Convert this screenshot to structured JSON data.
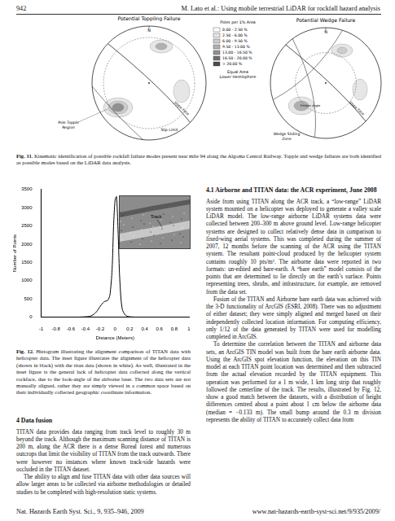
{
  "header": {
    "page": "942",
    "running_title": "M. Lato et al.: Using mobile terrestrial LiDAR for rockfall hazard analysis"
  },
  "figure11": {
    "north": "N",
    "panels": [
      {
        "title": "Potential Toppling Failure",
        "labels": [
          "Pole Topple Region",
          "Slip Limit",
          "Slope Face"
        ]
      },
      {
        "title": "Potential Wedge Failure",
        "labels": [
          "Wedge Sliding Zone",
          "Slope Face",
          "Friction Angle"
        ]
      }
    ],
    "legend": {
      "title": "Poles per 1% Area",
      "items": [
        "0.00 - 2.50 %",
        "2.50 - 6.00 %",
        "6.00 - 9.50 %",
        "9.50 - 13.00 %",
        "13.00 - 16.50 %",
        "16.50 - 20.00 %",
        "> 20.00 %"
      ],
      "footer": [
        "Equal Area",
        "Lower Hemisphere"
      ]
    },
    "caption": {
      "label": "Fig. 11.",
      "text": "Kinematic identification of possible rockfall failure modes present near mile 94 along the Algoma Central Railway. Topple and wedge failures are both identified as possible modes based on the LiDAR data analysis."
    }
  },
  "chart_data": {
    "type": "line",
    "x_label": "Distance (Meters)",
    "y_label": "Number of Points",
    "x": [
      -1,
      -0.8,
      -0.6,
      -0.45,
      -0.35,
      -0.3,
      -0.25,
      -0.2,
      -0.15,
      -0.1,
      -0.07,
      -0.04,
      -0.02,
      0,
      0.02,
      0.04,
      0.06,
      0.08,
      0.1,
      0.13,
      0.16,
      0.2,
      0.3,
      0.5,
      0.8,
      1
    ],
    "values": [
      0,
      0,
      0,
      5,
      20,
      60,
      150,
      300,
      420,
      460,
      600,
      1300,
      2500,
      3200,
      3300,
      2400,
      1200,
      500,
      200,
      80,
      30,
      10,
      0,
      0,
      0,
      0
    ],
    "color": "#000000",
    "xlim": [
      -1,
      1
    ],
    "xticks": [
      -1,
      -0.8,
      -0.6,
      -0.4,
      -0.2,
      0,
      0.2,
      0.4,
      0.6,
      0.8,
      1
    ],
    "ylim": [
      0,
      3500
    ],
    "yticks": [
      0,
      500,
      1000,
      1500,
      2000,
      2500,
      3000,
      3500
    ],
    "grid": false,
    "inset_label": "Track"
  },
  "figure12_caption": {
    "label": "Fig. 12.",
    "text": "Histogram illustrating the alignment comparison of TITAN data with helicopter data. The inset figure illustrates the alignment of the helicopter data (shown in black) with the titan data (shown in white). As well, illustrated in the inset figure is the general lack of helicopter data collected along the vertical rockface, due to the look-angle of the airborne laser. The two data sets are not manually aligned, rather they are simply viewed in a common space based on their individually collected geographic coordinate information."
  },
  "sections": [
    {
      "heading": "4 Data fusion",
      "paragraphs": [
        "TITAN data provides data ranging from track level to roughly 30 m beyond the track. Although the maximum scanning distance of TITAN is 200 m, along the ACR there is a dense Boreal forest and numerous outcrops that limit the visibility of TITAN from the track outwards. There were however no instances where known track-side hazards were occluded in the TITAN dataset.",
        "The ability to align and fuse TITAN data with other data sources will allow larger areas to be collected via airborne methodologies or detailed studies to be completed with high-resolution static systems."
      ]
    },
    {
      "heading": "4.1 Airborne and TITAN data: the ACR experiment, June 2008",
      "paragraphs": [
        "Aside from using TITAN along the ACR track, a “low-range” LiDAR system mounted on a helicopter was deployed to generate a valley scale LiDAR model. The low-range airborne LiDAR systems data were collected between 200–300 m above ground level. Low-range helicopter systems are designed to collect relatively dense data in comparison to fixed-wing aerial systems. This was completed during the summer of 2007, 12 months before the scanning of the ACR using the TITAN system. The resultant point-cloud produced by the helicopter system contains roughly 10 pts/m². The airborne data were reported in two formats: un-edited and bare-earth. A “bare earth” model consists of the points that are determined to lie directly on the earth’s surface. Points representing trees, shrubs, and infrastructure, for example, are removed from the data set.",
        "Fusion of the TITAN and Airborne bare earth data was achieved with the 3-D functionality of ArcGIS (ESRI, 2008). There was no adjustment of either dataset; they were simply aligned and merged based on their independently collected location information. For computing efficiency, only 1/12 of the data generated by TITAN were used for modelling completed in ArcGIS.",
        "To determine the correlation between the TITAN and airborne data sets, an ArcGIS TIN model was built from the bare earth airborne data. Using the ArcGIS spot elevation function, the elevation on this TIN model at each TITAN point location was determined and then subtracted from the actual elevation recorded by the TITAN equipment. This operation was performed for a 1 m wide, 1 km long strip that roughly followed the centerline of the track. The results, illustrated by Fig. 12, show a good match between the datasets, with a distribution of height differences centred about a point about 1 cm below the airborne data (median = −0.133 m). The small bump around the 0.3 m division represents the ability of TITAN to accurately collect data from"
      ]
    }
  ],
  "footer": {
    "left": "Nat. Hazards Earth Syst. Sci., 9, 935–946, 2009",
    "right": "www.nat-hazards-earth-syst-sci.net/9/935/2009/"
  }
}
